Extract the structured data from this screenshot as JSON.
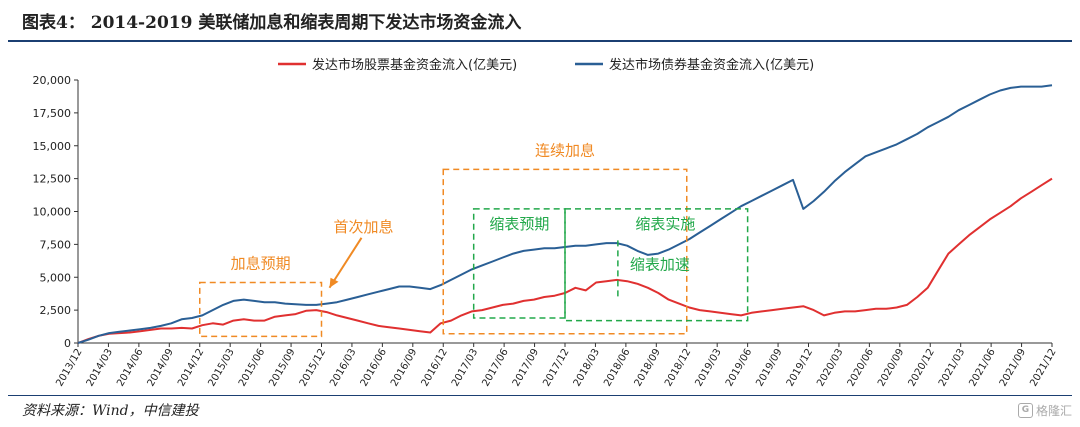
{
  "title": "图表4： 2014-2019 美联储加息和缩表周期下发达市场资金流入",
  "source": "资料来源：Wind，中信建投",
  "watermark": "格隆汇",
  "chart_data": {
    "type": "line",
    "title": "图表4： 2014-2019 美联储加息和缩表周期下发达市场资金流入",
    "xlabel": "",
    "ylabel": "",
    "ylim": [
      0,
      20000
    ],
    "yticks": [
      "0",
      "2,500",
      "5,000",
      "7,500",
      "10,000",
      "12,500",
      "15,000",
      "17,500",
      "20,000"
    ],
    "xticks": [
      "2013/12",
      "2014/03",
      "2014/06",
      "2014/09",
      "2014/12",
      "2015/03",
      "2015/06",
      "2015/09",
      "2015/12",
      "2016/03",
      "2016/06",
      "2016/09",
      "2016/12",
      "2017/03",
      "2017/06",
      "2017/09",
      "2017/12",
      "2018/03",
      "2018/06",
      "2018/09",
      "2018/12",
      "2019/03",
      "2019/06",
      "2019/09",
      "2019/12",
      "2020/03",
      "2020/06",
      "2020/09",
      "2020/12",
      "2021/03",
      "2021/06",
      "2021/09",
      "2021/12"
    ],
    "legend_position": "top-center",
    "grid": false,
    "series": [
      {
        "name": "发达市场股票基金资金流入(亿美元)",
        "color": "#e03030",
        "values": [
          0,
          300,
          550,
          700,
          750,
          800,
          900,
          1000,
          1100,
          1100,
          1150,
          1100,
          1350,
          1500,
          1400,
          1700,
          1800,
          1700,
          1700,
          2000,
          2100,
          2200,
          2450,
          2500,
          2350,
          2100,
          1900,
          1700,
          1500,
          1300,
          1200,
          1100,
          1000,
          900,
          800,
          1500,
          1700,
          2100,
          2400,
          2500,
          2700,
          2900,
          3000,
          3200,
          3300,
          3500,
          3600,
          3800,
          4200,
          4000,
          4600,
          4700,
          4800,
          4700,
          4500,
          4200,
          3800,
          3300,
          3000,
          2700,
          2500,
          2400,
          2300,
          2200,
          2100,
          2300,
          2400,
          2500,
          2600,
          2700,
          2800,
          2500,
          2100,
          2300,
          2400,
          2400,
          2500,
          2600,
          2600,
          2700,
          2900,
          3500,
          4200,
          5500,
          6800,
          7500,
          8200,
          8800,
          9400,
          9900,
          10400,
          11000,
          11500,
          12000,
          12500
        ]
      },
      {
        "name": "发达市场债券基金资金流入(亿美元)",
        "color": "#2a5f95",
        "values": [
          0,
          250,
          550,
          750,
          850,
          950,
          1050,
          1150,
          1300,
          1500,
          1800,
          1900,
          2100,
          2500,
          2900,
          3200,
          3300,
          3200,
          3100,
          3100,
          3000,
          2950,
          2900,
          2900,
          3000,
          3100,
          3300,
          3500,
          3700,
          3900,
          4100,
          4300,
          4300,
          4200,
          4100,
          4400,
          4800,
          5200,
          5600,
          5900,
          6200,
          6500,
          6800,
          7000,
          7100,
          7200,
          7200,
          7300,
          7400,
          7400,
          7500,
          7600,
          7600,
          7400,
          7000,
          6700,
          6800,
          7100,
          7500,
          7900,
          8400,
          8900,
          9400,
          9900,
          10400,
          10800,
          11200,
          11600,
          12000,
          12400,
          10200,
          10800,
          11500,
          12300,
          13000,
          13600,
          14200,
          14500,
          14800,
          15100,
          15500,
          15900,
          16400,
          16800,
          17200,
          17700,
          18100,
          18500,
          18900,
          19200,
          19400,
          19500,
          19500,
          19500,
          19600
        ]
      }
    ],
    "annotations": [
      {
        "text": "加息预期",
        "color": "#f08a24",
        "box_x": [
          "2014/12",
          "2015/12"
        ],
        "box_y": [
          500,
          4600
        ]
      },
      {
        "text": "首次加息",
        "color": "#f08a24",
        "arrow_to": "2015/12"
      },
      {
        "text": "连续加息",
        "color": "#f08a24",
        "box_x": [
          "2016/12",
          "2018/12"
        ],
        "box_y": [
          700,
          13200
        ]
      },
      {
        "text": "缩表预期",
        "color": "#22a84a",
        "box_x": [
          "2017/03",
          "2017/12"
        ],
        "box_y": [
          1900,
          10200
        ]
      },
      {
        "text": "缩表实施",
        "color": "#22a84a",
        "box_x": [
          "2017/12",
          "2019/06"
        ],
        "box_y": [
          1700,
          10200
        ]
      },
      {
        "text": "缩表加速",
        "color": "#22a84a",
        "divider_at": "2018/06"
      }
    ]
  }
}
